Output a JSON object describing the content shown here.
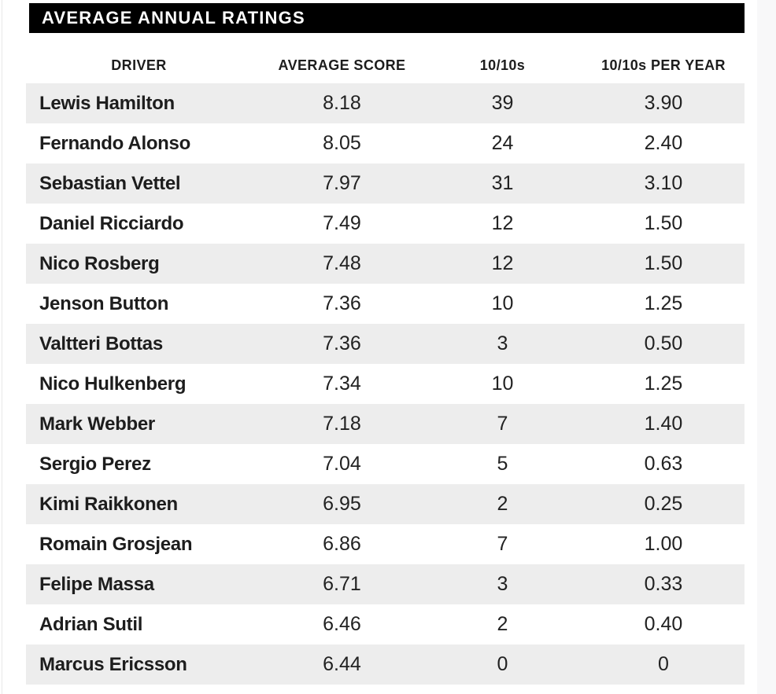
{
  "title": "AVERAGE ANNUAL RATINGS",
  "table": {
    "columns": [
      "DRIVER",
      "AVERAGE SCORE",
      "10/10s",
      "10/10s PER YEAR"
    ],
    "rows": [
      {
        "driver": "Lewis Hamilton",
        "avg_score": "8.18",
        "tens": "39",
        "tens_per_year": "3.90"
      },
      {
        "driver": "Fernando Alonso",
        "avg_score": "8.05",
        "tens": "24",
        "tens_per_year": "2.40"
      },
      {
        "driver": "Sebastian Vettel",
        "avg_score": "7.97",
        "tens": "31",
        "tens_per_year": "3.10"
      },
      {
        "driver": "Daniel Ricciardo",
        "avg_score": "7.49",
        "tens": "12",
        "tens_per_year": "1.50"
      },
      {
        "driver": "Nico Rosberg",
        "avg_score": "7.48",
        "tens": "12",
        "tens_per_year": "1.50"
      },
      {
        "driver": "Jenson Button",
        "avg_score": "7.36",
        "tens": "10",
        "tens_per_year": "1.25"
      },
      {
        "driver": "Valtteri Bottas",
        "avg_score": "7.36",
        "tens": "3",
        "tens_per_year": "0.50"
      },
      {
        "driver": "Nico Hulkenberg",
        "avg_score": "7.34",
        "tens": "10",
        "tens_per_year": "1.25"
      },
      {
        "driver": "Mark Webber",
        "avg_score": "7.18",
        "tens": "7",
        "tens_per_year": "1.40"
      },
      {
        "driver": "Sergio Perez",
        "avg_score": "7.04",
        "tens": "5",
        "tens_per_year": "0.63"
      },
      {
        "driver": "Kimi Raikkonen",
        "avg_score": "6.95",
        "tens": "2",
        "tens_per_year": "0.25"
      },
      {
        "driver": "Romain Grosjean",
        "avg_score": "6.86",
        "tens": "7",
        "tens_per_year": "1.00"
      },
      {
        "driver": "Felipe Massa",
        "avg_score": "6.71",
        "tens": "3",
        "tens_per_year": "0.33"
      },
      {
        "driver": "Adrian Sutil",
        "avg_score": "6.46",
        "tens": "2",
        "tens_per_year": "0.40"
      },
      {
        "driver": "Marcus Ericsson",
        "avg_score": "6.44",
        "tens": "0",
        "tens_per_year": "0"
      }
    ]
  },
  "chart_data": {
    "type": "table",
    "title": "AVERAGE ANNUAL RATINGS",
    "columns": [
      "DRIVER",
      "AVERAGE SCORE",
      "10/10s",
      "10/10s PER YEAR"
    ],
    "rows": [
      [
        "Lewis Hamilton",
        8.18,
        39,
        3.9
      ],
      [
        "Fernando Alonso",
        8.05,
        24,
        2.4
      ],
      [
        "Sebastian Vettel",
        7.97,
        31,
        3.1
      ],
      [
        "Daniel Ricciardo",
        7.49,
        12,
        1.5
      ],
      [
        "Nico Rosberg",
        7.48,
        12,
        1.5
      ],
      [
        "Jenson Button",
        7.36,
        10,
        1.25
      ],
      [
        "Valtteri Bottas",
        7.36,
        3,
        0.5
      ],
      [
        "Nico Hulkenberg",
        7.34,
        10,
        1.25
      ],
      [
        "Mark Webber",
        7.18,
        7,
        1.4
      ],
      [
        "Sergio Perez",
        7.04,
        5,
        0.63
      ],
      [
        "Kimi Raikkonen",
        6.95,
        2,
        0.25
      ],
      [
        "Romain Grosjean",
        6.86,
        7,
        1.0
      ],
      [
        "Felipe Massa",
        6.71,
        3,
        0.33
      ],
      [
        "Adrian Sutil",
        6.46,
        2,
        0.4
      ],
      [
        "Marcus Ericsson",
        6.44,
        0,
        0
      ]
    ],
    "layout": {
      "striped_rows": true,
      "stripe_color": "#ededed",
      "header_band_color": "#000000"
    }
  },
  "colors": {
    "title_bar_bg": "#000000",
    "title_text": "#ffffff",
    "row_stripe": "#ededed",
    "body_text": "#1d1d1d",
    "page_edge_strip": "#f8f8f9"
  }
}
